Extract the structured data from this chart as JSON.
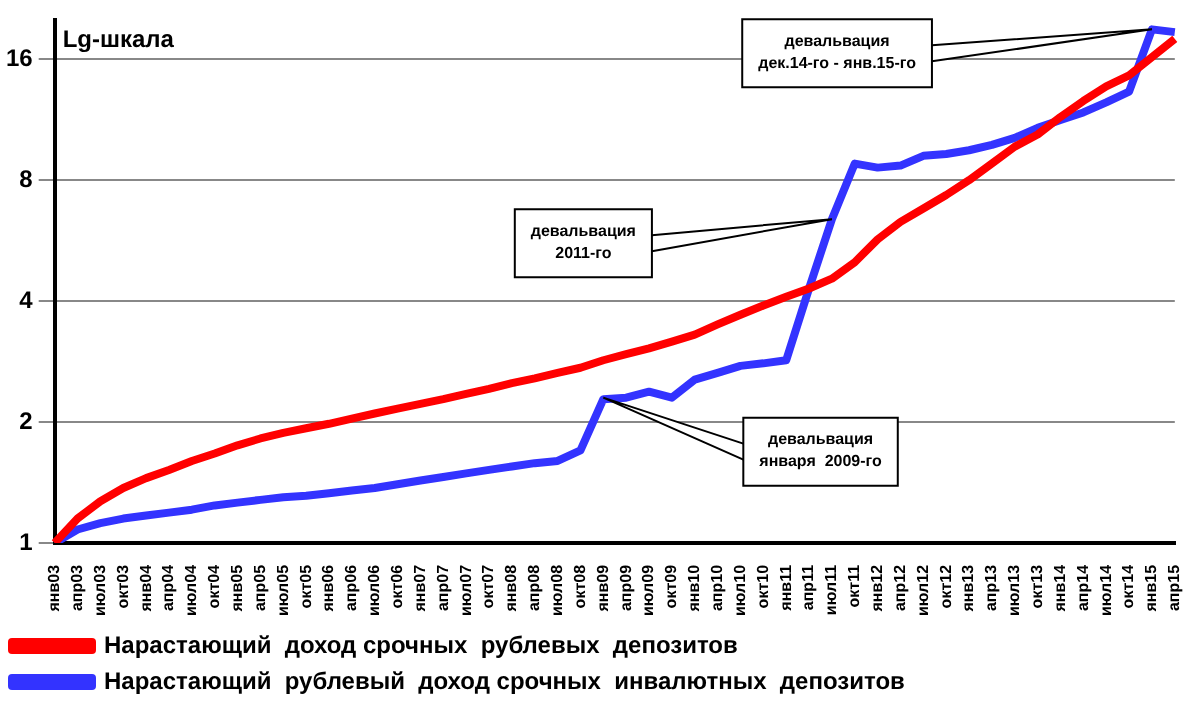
{
  "chart_data": {
    "type": "line",
    "categories": [
      "янв03",
      "апр03",
      "июл03",
      "окт03",
      "янв04",
      "апр04",
      "июл04",
      "окт04",
      "янв05",
      "апр05",
      "июл05",
      "окт05",
      "янв06",
      "апр06",
      "июл06",
      "окт06",
      "янв07",
      "апр07",
      "июл07",
      "окт07",
      "янв08",
      "апр08",
      "июл08",
      "окт08",
      "янв09",
      "апр09",
      "июл09",
      "окт09",
      "янв10",
      "апр10",
      "июл10",
      "окт10",
      "янв11",
      "апр11",
      "июл11",
      "окт11",
      "янв12",
      "апр12",
      "июл12",
      "окт12",
      "янв13",
      "апр13",
      "июл13",
      "окт13",
      "янв14",
      "апр14",
      "июл14",
      "окт14",
      "янв15",
      "апр15"
    ],
    "series": [
      {
        "name": "Нарастающий  доход срочных  рублевых  депозитов",
        "color": "#ff0000",
        "values": [
          1.0,
          1.15,
          1.27,
          1.37,
          1.45,
          1.52,
          1.6,
          1.67,
          1.75,
          1.82,
          1.88,
          1.93,
          1.98,
          2.04,
          2.1,
          2.16,
          2.22,
          2.28,
          2.35,
          2.42,
          2.5,
          2.57,
          2.65,
          2.73,
          2.85,
          2.95,
          3.05,
          3.17,
          3.3,
          3.5,
          3.7,
          3.9,
          4.1,
          4.3,
          4.55,
          5.0,
          5.7,
          6.3,
          6.8,
          7.35,
          8.0,
          8.8,
          9.7,
          10.4,
          11.5,
          12.6,
          13.7,
          14.6,
          16.2,
          18
        ]
      },
      {
        "name": "Нарастающий  рублевый  доход срочных  инвалютных  депозитов",
        "color": "#3333ff",
        "values": [
          1.0,
          1.08,
          1.12,
          1.15,
          1.17,
          1.19,
          1.21,
          1.24,
          1.26,
          1.28,
          1.3,
          1.31,
          1.33,
          1.35,
          1.37,
          1.4,
          1.43,
          1.46,
          1.49,
          1.52,
          1.55,
          1.58,
          1.6,
          1.7,
          2.28,
          2.3,
          2.38,
          2.3,
          2.55,
          2.65,
          2.76,
          2.8,
          2.85,
          4.3,
          6.4,
          8.8,
          8.6,
          8.7,
          9.2,
          9.3,
          9.5,
          9.8,
          10.2,
          10.8,
          11.3,
          11.8,
          12.5,
          13.3,
          19,
          18.7
        ]
      }
    ],
    "log": "y",
    "ylim": [
      1,
      20
    ],
    "yticks": [
      1,
      2,
      4,
      8,
      16
    ],
    "grid": "y",
    "legend": "bottom",
    "marker": "none",
    "line_style": "solid",
    "annotations": [
      "Lg-шкала",
      {
        "text": "девальвация\nянваря  2009-го",
        "x": "янв09",
        "y": 2.3
      },
      {
        "text": "девальвация\n2011-го",
        "x": "июл11",
        "y": 6.4
      },
      {
        "text": "девальвация\nдек.14-го - янв.15-го",
        "x": "янв15",
        "y": 19
      }
    ]
  }
}
